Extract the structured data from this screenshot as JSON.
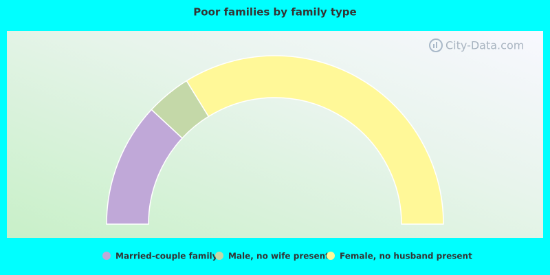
{
  "chart_data": {
    "type": "semi-donut",
    "title": "Poor families by family type",
    "watermark": "City-Data.com",
    "categories": [
      "Married-couple family",
      "Male, no wife present",
      "Female, no husband present"
    ],
    "values": [
      23.8,
      8.6,
      67.6
    ],
    "colors": [
      "#c0a8d8",
      "#c4d8a8",
      "#fff898"
    ],
    "legend": "bottom"
  }
}
